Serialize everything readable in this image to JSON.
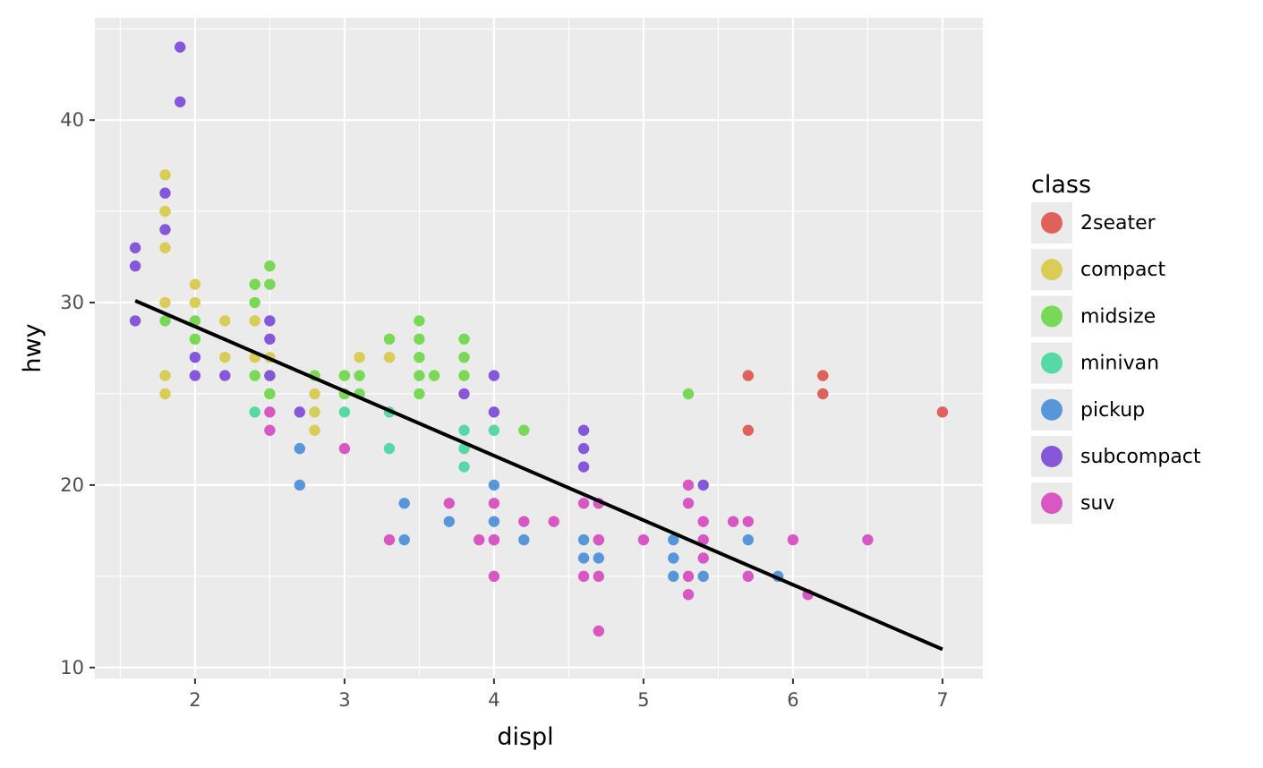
{
  "chart_data": {
    "type": "scatter",
    "xlabel": "displ",
    "ylabel": "hwy",
    "xlim": [
      1.33,
      7.27
    ],
    "ylim": [
      9.4,
      45.6
    ],
    "x_ticks": [
      2,
      3,
      4,
      5,
      6,
      7
    ],
    "y_ticks": [
      10,
      20,
      30,
      40
    ],
    "grid": true,
    "legend": {
      "title": "class",
      "placement": "right",
      "entries": [
        {
          "name": "2seater",
          "color": "#E0605A"
        },
        {
          "name": "compact",
          "color": "#D9CC57"
        },
        {
          "name": "midsize",
          "color": "#78D957"
        },
        {
          "name": "minivan",
          "color": "#57D9A6"
        },
        {
          "name": "pickup",
          "color": "#5797D9"
        },
        {
          "name": "subcompact",
          "color": "#8557D9"
        },
        {
          "name": "suv",
          "color": "#D957C2"
        }
      ]
    },
    "trend_line": {
      "x": [
        1.6,
        7.0
      ],
      "y": [
        30.1,
        11.0
      ],
      "color": "#000000"
    },
    "series": [
      {
        "name": "2seater",
        "points": [
          [
            5.7,
            26
          ],
          [
            5.7,
            23
          ],
          [
            6.2,
            26
          ],
          [
            6.2,
            25
          ],
          [
            7.0,
            24
          ]
        ]
      },
      {
        "name": "compact",
        "points": [
          [
            1.8,
            37
          ],
          [
            1.8,
            35
          ],
          [
            1.8,
            33
          ],
          [
            1.8,
            30
          ],
          [
            1.8,
            26
          ],
          [
            1.8,
            25
          ],
          [
            2.0,
            31
          ],
          [
            2.0,
            30
          ],
          [
            2.0,
            28
          ],
          [
            2.0,
            29
          ],
          [
            2.2,
            29
          ],
          [
            2.2,
            27
          ],
          [
            2.4,
            31
          ],
          [
            2.4,
            29
          ],
          [
            2.4,
            27
          ],
          [
            2.5,
            27
          ],
          [
            2.5,
            25
          ],
          [
            2.5,
            26
          ],
          [
            2.8,
            25
          ],
          [
            2.8,
            24
          ],
          [
            2.8,
            23
          ],
          [
            3.0,
            26
          ],
          [
            3.1,
            27
          ],
          [
            3.3,
            27
          ],
          [
            3.0,
            25
          ]
        ]
      },
      {
        "name": "midsize",
        "points": [
          [
            1.8,
            29
          ],
          [
            2.0,
            29
          ],
          [
            2.0,
            28
          ],
          [
            2.4,
            31
          ],
          [
            2.4,
            30
          ],
          [
            2.4,
            26
          ],
          [
            2.5,
            32
          ],
          [
            2.5,
            31
          ],
          [
            2.5,
            26
          ],
          [
            2.5,
            25
          ],
          [
            2.8,
            26
          ],
          [
            3.0,
            26
          ],
          [
            3.0,
            25
          ],
          [
            3.1,
            26
          ],
          [
            3.1,
            25
          ],
          [
            3.3,
            28
          ],
          [
            3.5,
            29
          ],
          [
            3.5,
            28
          ],
          [
            3.5,
            27
          ],
          [
            3.5,
            26
          ],
          [
            3.5,
            25
          ],
          [
            3.6,
            26
          ],
          [
            3.8,
            28
          ],
          [
            3.8,
            27
          ],
          [
            3.8,
            26
          ],
          [
            4.2,
            23
          ],
          [
            5.3,
            25
          ]
        ]
      },
      {
        "name": "minivan",
        "points": [
          [
            2.4,
            24
          ],
          [
            3.0,
            24
          ],
          [
            3.3,
            24
          ],
          [
            3.3,
            22
          ],
          [
            3.8,
            23
          ],
          [
            3.8,
            22
          ],
          [
            3.8,
            21
          ],
          [
            4.0,
            23
          ]
        ]
      },
      {
        "name": "pickup",
        "points": [
          [
            2.7,
            22
          ],
          [
            2.7,
            20
          ],
          [
            3.4,
            19
          ],
          [
            3.4,
            17
          ],
          [
            3.7,
            18
          ],
          [
            4.0,
            20
          ],
          [
            4.0,
            18
          ],
          [
            4.0,
            17
          ],
          [
            4.2,
            17
          ],
          [
            4.6,
            17
          ],
          [
            4.6,
            16
          ],
          [
            4.7,
            17
          ],
          [
            4.7,
            16
          ],
          [
            5.2,
            17
          ],
          [
            5.2,
            16
          ],
          [
            5.2,
            15
          ],
          [
            5.4,
            15
          ],
          [
            5.7,
            17
          ],
          [
            5.9,
            15
          ]
        ]
      },
      {
        "name": "subcompact",
        "points": [
          [
            1.6,
            33
          ],
          [
            1.6,
            32
          ],
          [
            1.6,
            29
          ],
          [
            1.8,
            36
          ],
          [
            1.8,
            34
          ],
          [
            1.9,
            44
          ],
          [
            1.9,
            41
          ],
          [
            2.0,
            27
          ],
          [
            2.0,
            26
          ],
          [
            2.2,
            26
          ],
          [
            2.5,
            29
          ],
          [
            2.5,
            28
          ],
          [
            2.5,
            26
          ],
          [
            2.7,
            24
          ],
          [
            3.8,
            25
          ],
          [
            4.0,
            26
          ],
          [
            4.0,
            24
          ],
          [
            4.6,
            23
          ],
          [
            4.6,
            22
          ],
          [
            4.6,
            21
          ],
          [
            5.4,
            20
          ]
        ]
      },
      {
        "name": "suv",
        "points": [
          [
            2.5,
            24
          ],
          [
            2.5,
            23
          ],
          [
            3.0,
            22
          ],
          [
            3.3,
            17
          ],
          [
            3.7,
            19
          ],
          [
            3.9,
            17
          ],
          [
            4.0,
            19
          ],
          [
            4.0,
            17
          ],
          [
            4.0,
            15
          ],
          [
            4.2,
            18
          ],
          [
            4.4,
            18
          ],
          [
            4.6,
            19
          ],
          [
            4.6,
            15
          ],
          [
            4.7,
            19
          ],
          [
            4.7,
            17
          ],
          [
            4.7,
            15
          ],
          [
            4.7,
            12
          ],
          [
            5.0,
            17
          ],
          [
            5.3,
            20
          ],
          [
            5.3,
            19
          ],
          [
            5.3,
            15
          ],
          [
            5.3,
            14
          ],
          [
            5.4,
            18
          ],
          [
            5.4,
            17
          ],
          [
            5.4,
            16
          ],
          [
            5.6,
            18
          ],
          [
            5.7,
            18
          ],
          [
            5.7,
            15
          ],
          [
            6.0,
            17
          ],
          [
            6.1,
            14
          ],
          [
            6.5,
            17
          ]
        ]
      }
    ]
  }
}
